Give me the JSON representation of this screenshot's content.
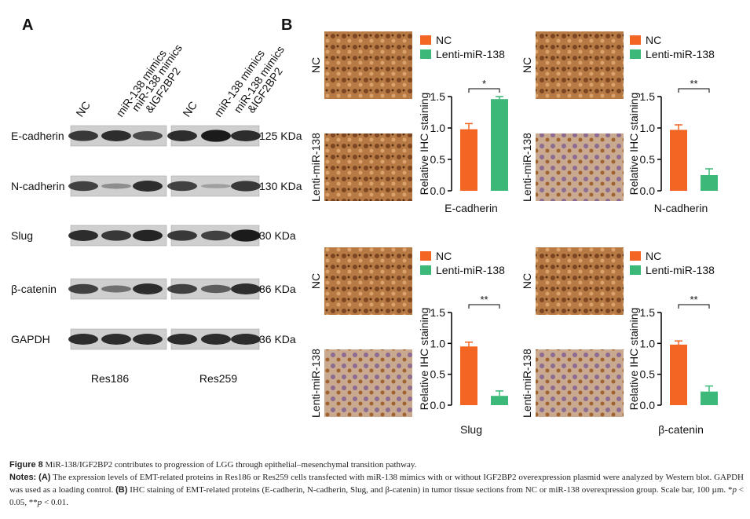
{
  "panel_a": {
    "label": "A",
    "lanes": [
      "NC",
      "miR-138 mimics",
      "miR-138 mimics",
      "&IGF2BP2",
      "NC",
      "miR-138 mimics",
      "miR-138 mimics",
      "&IGF2BP2"
    ],
    "proteins": [
      "E-cadherin",
      "N-cadherin",
      "Slug",
      "β-catenin",
      "GAPDH"
    ],
    "sizes": [
      "125 KDa",
      "130 KDa",
      "30 KDa",
      "86 KDa",
      "36 KDa"
    ],
    "cell_lines": [
      "Res186",
      "Res259"
    ]
  },
  "panel_b": {
    "label": "B"
  },
  "chart_data": [
    {
      "type": "bar",
      "xlabel": "E-cadherin",
      "ylabel": "Relative IHC staining",
      "row_labels": [
        "NC",
        "Lenti-miR-138"
      ],
      "ylim": [
        0,
        1.5
      ],
      "yticks": [
        {
          "value": 0,
          "label": "0.0"
        },
        0.5,
        {
          "value": 1,
          "label": "1.0"
        },
        1.5
      ],
      "series": [
        {
          "name": "NC",
          "color": "#f26522",
          "values": [
            0.98
          ],
          "errors": [
            0.09
          ]
        },
        {
          "name": "Lenti-miR-138",
          "color": "#3cb878",
          "values": [
            1.46
          ],
          "errors": [
            0.04
          ]
        }
      ],
      "annotation": "*"
    },
    {
      "type": "bar",
      "xlabel": "N-cadherin",
      "ylabel": "Relative IHC staining",
      "row_labels": [
        "NC",
        "Lenti-miR-138"
      ],
      "ylim": [
        0,
        1.5
      ],
      "yticks": [
        {
          "value": 0,
          "label": "0.0"
        },
        0.5,
        {
          "value": 1,
          "label": "1.0"
        },
        1.5
      ],
      "series": [
        {
          "name": "NC",
          "color": "#f26522",
          "values": [
            0.97
          ],
          "errors": [
            0.08
          ]
        },
        {
          "name": "Lenti-miR-138",
          "color": "#3cb878",
          "values": [
            0.25
          ],
          "errors": [
            0.1
          ]
        }
      ],
      "annotation": "**"
    },
    {
      "type": "bar",
      "xlabel": "Slug",
      "ylabel": "Relative IHC staining",
      "row_labels": [
        "NC",
        "Lenti-miR-138"
      ],
      "ylim": [
        0,
        1.5
      ],
      "yticks": [
        {
          "value": 0,
          "label": "0.0"
        },
        0.5,
        {
          "value": 1,
          "label": "1.0"
        },
        1.5
      ],
      "series": [
        {
          "name": "NC",
          "color": "#f26522",
          "values": [
            0.95
          ],
          "errors": [
            0.07
          ]
        },
        {
          "name": "Lenti-miR-138",
          "color": "#3cb878",
          "values": [
            0.15
          ],
          "errors": [
            0.08
          ]
        }
      ],
      "annotation": "**"
    },
    {
      "type": "bar",
      "xlabel": "β-catenin",
      "ylabel": "Relative IHC staining",
      "row_labels": [
        "NC",
        "Lenti-miR-138"
      ],
      "ylim": [
        0,
        1.5
      ],
      "yticks": [
        {
          "value": 0,
          "label": "0.0"
        },
        0.5,
        {
          "value": 1,
          "label": "1.0"
        },
        1.5
      ],
      "series": [
        {
          "name": "NC",
          "color": "#f26522",
          "values": [
            0.98
          ],
          "errors": [
            0.06
          ]
        },
        {
          "name": "Lenti-miR-138",
          "color": "#3cb878",
          "values": [
            0.22
          ],
          "errors": [
            0.09
          ]
        }
      ],
      "annotation": "**"
    }
  ],
  "caption": {
    "figure_label": "Figure 8",
    "title": " MiR-138/IGF2BP2 contributes to progression of LGG through epithelial–mesenchymal transition pathway.",
    "notes_label": "Notes:",
    "notes_parts": [
      " ",
      "(A)",
      " The expression levels of EMT-related proteins in Res186 or Res259 cells transfected with miR-138 mimics with or without IGF2BP2 overexpression plasmid were analyzed by Western blot. GAPDH was used as a loading control. ",
      "(B)",
      " IHC staining of EMT-related proteins (E-cadherin, N-cadherin, Slug, and β-catenin) in tumor tissue sections from NC or miR-138 overexpression group. Scale bar, 100 µm. *",
      "p",
      " < 0.05, **",
      "p",
      " < 0.01."
    ]
  }
}
